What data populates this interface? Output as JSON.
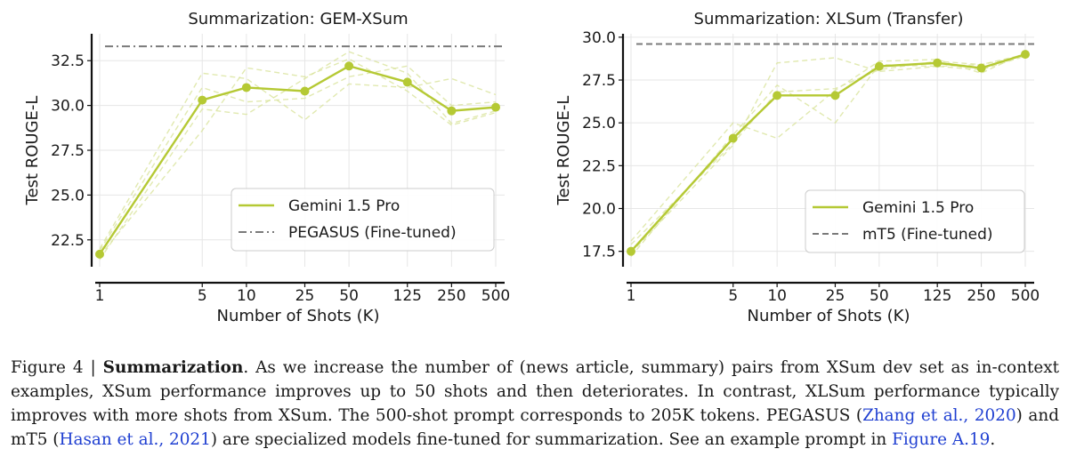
{
  "chart_data": [
    {
      "type": "line",
      "title": "Summarization: GEM-XSum",
      "xlabel": "Number of Shots (K)",
      "ylabel": "Test ROUGE-L",
      "x_scale": "log",
      "x": [
        1,
        5,
        10,
        25,
        50,
        125,
        250,
        500
      ],
      "x_tick_labels": [
        "1",
        "5",
        "10",
        "25",
        "50",
        "125",
        "250",
        "500"
      ],
      "y_ticks": [
        "22.5",
        "25.0",
        "27.5",
        "30.0",
        "32.5"
      ],
      "ylim": [
        21,
        34
      ],
      "grid": true,
      "legend_position": "center-right",
      "series": [
        {
          "name": "Gemini 1.5 Pro",
          "values": [
            21.7,
            30.3,
            31.0,
            30.8,
            32.2,
            31.3,
            29.7,
            29.9
          ],
          "color": "#b5c934",
          "style": "solid-markers"
        }
      ],
      "runs": [
        [
          21.4,
          29.8,
          29.5,
          31.5,
          33.0,
          31.8,
          29.0,
          29.7
        ],
        [
          22.0,
          31.8,
          31.5,
          29.2,
          31.2,
          31.0,
          31.5,
          30.6
        ],
        [
          21.6,
          28.6,
          32.1,
          31.6,
          32.6,
          30.8,
          28.9,
          29.6
        ],
        [
          21.9,
          31.0,
          30.2,
          30.4,
          31.6,
          32.2,
          30.0,
          30.2
        ]
      ],
      "reference": {
        "name": "PEGASUS (Fine-tuned)",
        "value": 33.3,
        "color": "#7a7a7a",
        "style": "dashdot"
      }
    },
    {
      "type": "line",
      "title": "Summarization: XLSum (Transfer)",
      "xlabel": "Number of Shots (K)",
      "ylabel": "Test ROUGE-L",
      "x_scale": "log",
      "x": [
        1,
        5,
        10,
        25,
        50,
        125,
        250,
        500
      ],
      "x_tick_labels": [
        "1",
        "5",
        "10",
        "25",
        "50",
        "125",
        "250",
        "500"
      ],
      "y_ticks": [
        "17.5",
        "20.0",
        "22.5",
        "25.0",
        "27.5",
        "30.0"
      ],
      "ylim": [
        16.6,
        30.2
      ],
      "grid": true,
      "legend_position": "center-right",
      "series": [
        {
          "name": "Gemini 1.5 Pro",
          "values": [
            17.5,
            24.1,
            26.6,
            26.6,
            28.3,
            28.5,
            28.2,
            29.0
          ],
          "color": "#b5c934",
          "style": "solid-markers"
        }
      ],
      "runs": [
        [
          17.4,
          23.7,
          28.5,
          28.8,
          28.0,
          28.3,
          28.4,
          29.0
        ],
        [
          18.1,
          25.0,
          24.1,
          26.9,
          28.6,
          28.7,
          27.9,
          29.1
        ],
        [
          17.2,
          24.3,
          27.2,
          25.0,
          28.4,
          28.3,
          28.1,
          28.9
        ],
        [
          17.9,
          23.8,
          26.8,
          27.0,
          28.1,
          28.6,
          28.4,
          28.9
        ]
      ],
      "reference": {
        "name": "mT5 (Fine-tuned)",
        "value": 29.6,
        "color": "#7a7a7a",
        "style": "dashed"
      }
    }
  ],
  "caption": {
    "prefix": "Figure 4 | ",
    "bold": "Summarization",
    "t1": ". As we increase the number of (news article, summary) pairs from XSum dev set as in-context examples, XSum performance improves up to 50 shots and then deteriorates. In contrast, XLSum performance typically improves with more shots from XSum. The 500-shot prompt corresponds to 205K tokens. PEGASUS (",
    "cite1": "Zhang et al., 2020",
    "t2": ") and mT5 (",
    "cite2": "Hasan et al., 2021",
    "t3": ") are specialized models fine-tuned for summarization. See an example prompt in ",
    "fig_ref": "Figure A.19",
    "t4": "."
  }
}
